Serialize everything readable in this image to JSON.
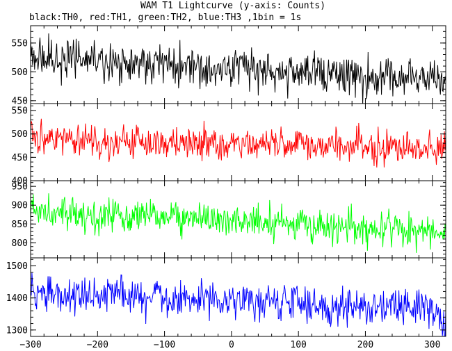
{
  "title": "WAM T1 Lightcurve (y-axis: Counts)",
  "subtitle": "black:TH0, red:TH1, green:TH2, blue:TH3 ,1bin = 1s",
  "chart_data": [
    {
      "type": "line",
      "series_label": "TH0",
      "color": "#000000",
      "x_range": [
        -300,
        320
      ],
      "ylim": [
        445,
        580
      ],
      "y_ticks": [
        450,
        500,
        550
      ],
      "generated_line": {
        "start_mean": 525,
        "end_mean": 485,
        "noise": 22
      }
    },
    {
      "type": "line",
      "series_label": "TH1",
      "color": "#ff0000",
      "x_range": [
        -300,
        320
      ],
      "ylim": [
        400,
        565
      ],
      "y_ticks": [
        400,
        450,
        500,
        550
      ],
      "generated_line": {
        "start_mean": 488,
        "end_mean": 470,
        "noise": 22
      }
    },
    {
      "type": "line",
      "series_label": "TH2",
      "color": "#00ff00",
      "x_range": [
        -300,
        320
      ],
      "ylim": [
        760,
        965
      ],
      "y_ticks": [
        800,
        850,
        900,
        950
      ],
      "generated_line": {
        "start_mean": 885,
        "end_mean": 830,
        "noise": 30
      }
    },
    {
      "type": "line",
      "series_label": "TH3",
      "color": "#0000ff",
      "x_range": [
        -300,
        320
      ],
      "ylim": [
        1280,
        1525
      ],
      "y_ticks": [
        1300,
        1400,
        1500
      ],
      "generated_line": {
        "start_mean": 1415,
        "end_mean": 1365,
        "noise": 38
      }
    }
  ],
  "x_axis": {
    "ticks": [
      -300,
      -200,
      -100,
      0,
      100,
      200,
      300
    ]
  }
}
